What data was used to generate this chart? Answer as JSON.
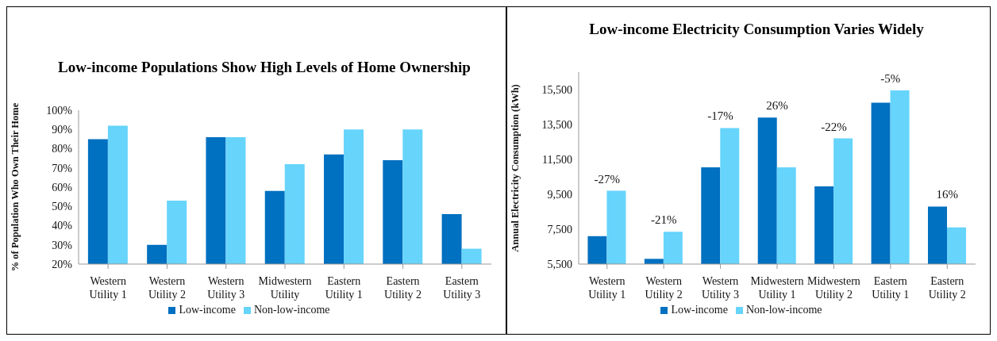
{
  "chart_data": [
    {
      "type": "bar",
      "title": "Low-income Populations Show High Levels of Home Ownership",
      "ylabel": "% of Population Who Own Their Home",
      "categories": [
        "Western Utility 1",
        "Western Utility 2",
        "Western Utility 3",
        "Midwestern Utility",
        "Eastern Utility 1",
        "Eastern Utility 2",
        "Eastern Utility 3"
      ],
      "series": [
        {
          "name": "Low-income",
          "color": "#0070c0",
          "values": [
            85,
            30,
            86,
            58,
            77,
            74,
            46
          ]
        },
        {
          "name": "Non-low-income",
          "color": "#66d4fb",
          "values": [
            92,
            53,
            86,
            72,
            90,
            90,
            28
          ]
        }
      ],
      "ylim": [
        20,
        100
      ],
      "yticks": [
        {
          "value": 20,
          "label": "20%"
        },
        {
          "value": 30,
          "label": "30%"
        },
        {
          "value": 40,
          "label": "40%"
        },
        {
          "value": 50,
          "label": "50%"
        },
        {
          "value": 60,
          "label": "60%"
        },
        {
          "value": 70,
          "label": "70%"
        },
        {
          "value": 80,
          "label": "80%"
        },
        {
          "value": 90,
          "label": "90%"
        },
        {
          "value": 100,
          "label": "100%"
        }
      ],
      "grid": false,
      "legend": "bottom"
    },
    {
      "type": "bar",
      "title": "Low-income Electricity Consumption Varies Widely",
      "ylabel": "Annual Electricity Consumption (kWh)",
      "categories": [
        "Western Utility 1",
        "Western Utility 2",
        "Western Utility 3",
        "Midwestern Utility 1",
        "Midwestern Utility 2",
        "Eastern Utility 1",
        "Eastern Utility 2"
      ],
      "series": [
        {
          "name": "Low-income",
          "color": "#0070c0",
          "values": [
            7100,
            5800,
            11050,
            13900,
            9950,
            14750,
            8800
          ]
        },
        {
          "name": "Non-low-income",
          "color": "#66d4fb",
          "values": [
            9700,
            7350,
            13300,
            11050,
            12700,
            15450,
            7600
          ]
        }
      ],
      "ylim": [
        5500,
        16500
      ],
      "yticks": [
        {
          "value": 5500,
          "label": "5,500"
        },
        {
          "value": 7500,
          "label": "7,500"
        },
        {
          "value": 9500,
          "label": "9,500"
        },
        {
          "value": 11500,
          "label": "11,500"
        },
        {
          "value": 13500,
          "label": "13,500"
        },
        {
          "value": 15500,
          "label": "15,500"
        }
      ],
      "annotations": [
        {
          "text": "-27%",
          "x": "Western Utility 1",
          "y": 9700
        },
        {
          "text": "-21%",
          "x": "Western Utility 2",
          "y": 7350
        },
        {
          "text": "-17%",
          "x": "Western Utility 3",
          "y": 13300
        },
        {
          "text": "26%",
          "x": "Midwestern Utility 1",
          "y": 13900
        },
        {
          "text": "-22%",
          "x": "Midwestern Utility 2",
          "y": 12700
        },
        {
          "text": "-5%",
          "x": "Eastern Utility 1",
          "y": 15450
        },
        {
          "text": "16%",
          "x": "Eastern Utility 2",
          "y": 8800
        }
      ],
      "grid": false,
      "legend": "bottom"
    }
  ]
}
